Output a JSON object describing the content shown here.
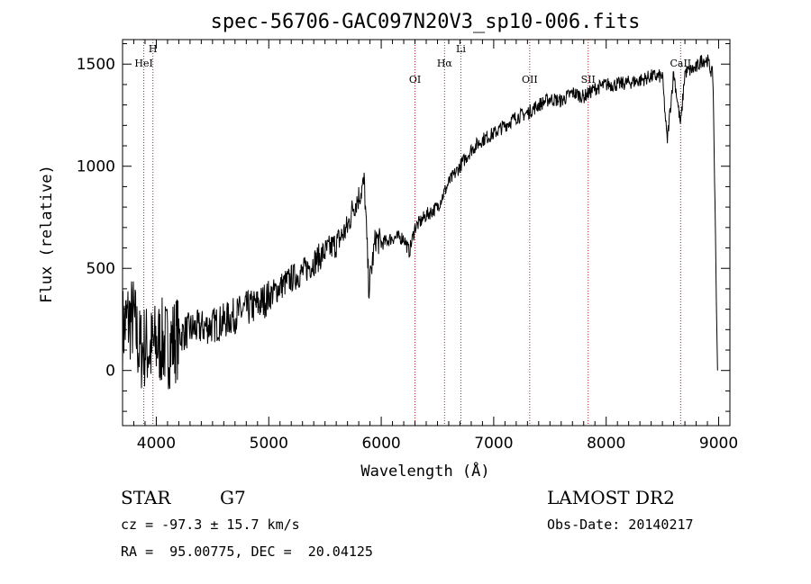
{
  "chart_data": {
    "type": "line",
    "title": "spec-56706-GAC097N20V3_sp10-006.fits",
    "xlabel": "Wavelength (Å)",
    "ylabel": "Flux (relative)",
    "xlim": [
      3700,
      9100
    ],
    "ylim": [
      -270,
      1620
    ],
    "xticks": [
      4000,
      5000,
      6000,
      7000,
      8000,
      9000
    ],
    "yticks": [
      0,
      500,
      1000,
      1500
    ],
    "grid": false,
    "line_color": "#000000",
    "marker_color": "#b22222",
    "emission_lines": [
      {
        "label": "HeI",
        "wavelength": 3889
      },
      {
        "label": "H",
        "wavelength": 3970
      },
      {
        "label": "OI",
        "wavelength": 6300
      },
      {
        "label": "Hα",
        "wavelength": 6563
      },
      {
        "label": "Li",
        "wavelength": 6708
      },
      {
        "label": "OII",
        "wavelength": 7320
      },
      {
        "label": "SII",
        "wavelength": 7840
      },
      {
        "label": "CaII",
        "wavelength": 8662
      }
    ],
    "series": [
      {
        "x": [
          3700,
          3750,
          3800,
          3850,
          3900,
          3950,
          4000,
          4050,
          4100,
          4200,
          4300,
          4400,
          4500,
          4600,
          4700,
          4800,
          4900,
          5000,
          5100,
          5200,
          5300,
          5400,
          5500,
          5600,
          5700,
          5750,
          5800,
          5850,
          5890,
          5950,
          6000,
          6100,
          6200,
          6250,
          6300,
          6400,
          6500,
          6600,
          6700,
          6800,
          6900,
          7000,
          7100,
          7200,
          7300,
          7400,
          7500,
          7600,
          7700,
          7800,
          7900,
          8000,
          8100,
          8200,
          8300,
          8400,
          8500,
          8542,
          8600,
          8662,
          8700,
          8800,
          8850,
          8900,
          8950,
          8990
        ],
        "y": [
          200,
          250,
          250,
          100,
          120,
          100,
          130,
          140,
          120,
          170,
          200,
          210,
          220,
          240,
          270,
          300,
          320,
          360,
          410,
          450,
          480,
          530,
          580,
          620,
          700,
          800,
          850,
          920,
          400,
          650,
          620,
          650,
          650,
          580,
          700,
          760,
          800,
          920,
          1000,
          1080,
          1130,
          1160,
          1200,
          1240,
          1260,
          1300,
          1330,
          1320,
          1360,
          1340,
          1380,
          1400,
          1400,
          1410,
          1420,
          1440,
          1440,
          1120,
          1460,
          1200,
          1460,
          1480,
          1520,
          1520,
          1440,
          0
        ]
      }
    ]
  },
  "info": {
    "object_class": "STAR",
    "subclass": "G7",
    "cz": "cz = -97.3 ± 15.7 km/s",
    "coords": "RA =  95.00775, DEC =  20.04125",
    "survey": "LAMOST DR2",
    "obs_date": "Obs-Date: 20140217"
  }
}
